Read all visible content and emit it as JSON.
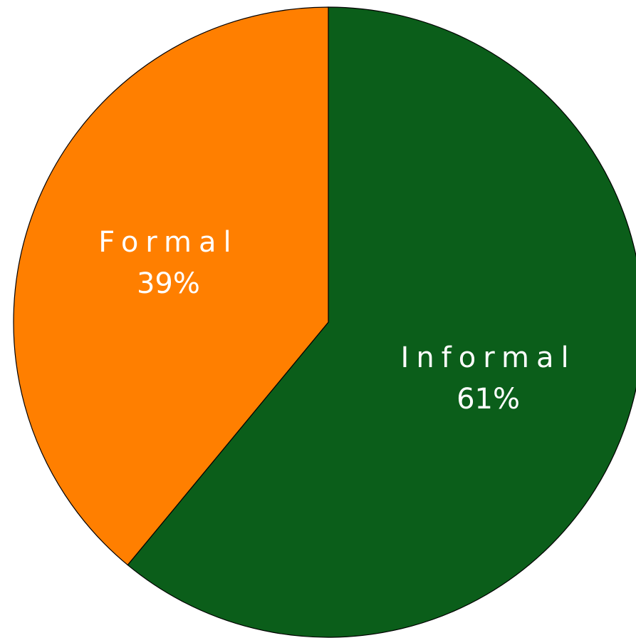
{
  "chart_data": {
    "type": "pie",
    "title": "",
    "slices": [
      {
        "label": "Informal",
        "value": 61,
        "value_label": "61%",
        "color": "#0b5e1a"
      },
      {
        "label": "Formal",
        "value": 39,
        "value_label": "39%",
        "color": "#ff7f00"
      }
    ],
    "start_angle": "12 o'clock",
    "direction": "clockwise",
    "legend": "none",
    "labels_inside_slices": true
  }
}
